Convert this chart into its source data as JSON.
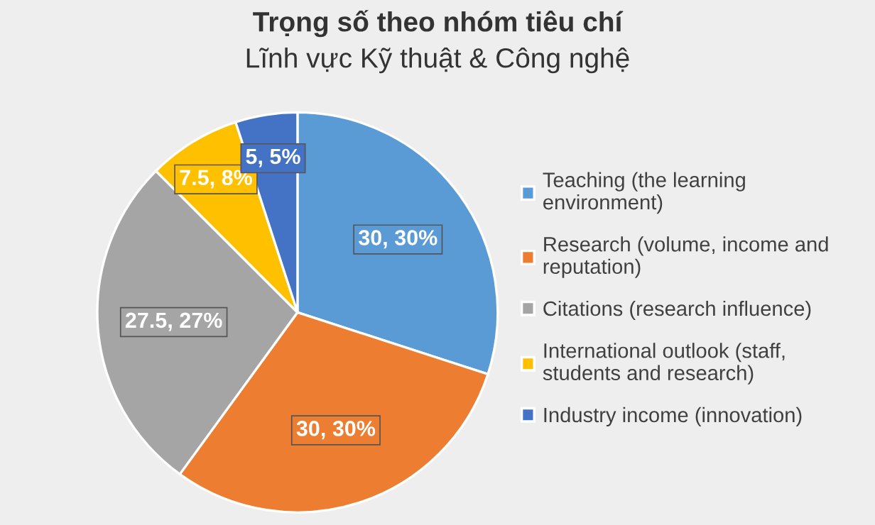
{
  "chart_data": {
    "type": "pie",
    "title": "Trọng số theo nhóm tiêu chí",
    "subtitle": "Lĩnh vực Kỹ thuật & Công nghệ",
    "categories": [
      "Teaching (the learning\nenvironment)",
      "Research (volume, income and\nreputation)",
      "Citations (research influence)",
      "International outlook (staff,\nstudents and research)",
      "Industry income (innovation)"
    ],
    "values": [
      30,
      30,
      27.5,
      7.5,
      5
    ],
    "value_labels": [
      "30, 30%",
      "30, 30%",
      "27.5, 27%",
      "7.5, 8%",
      "5, 5%"
    ],
    "colors": [
      "#5b9bd5",
      "#ed7d31",
      "#a5a5a5",
      "#ffc000",
      "#4472c4"
    ],
    "legend": "right"
  }
}
